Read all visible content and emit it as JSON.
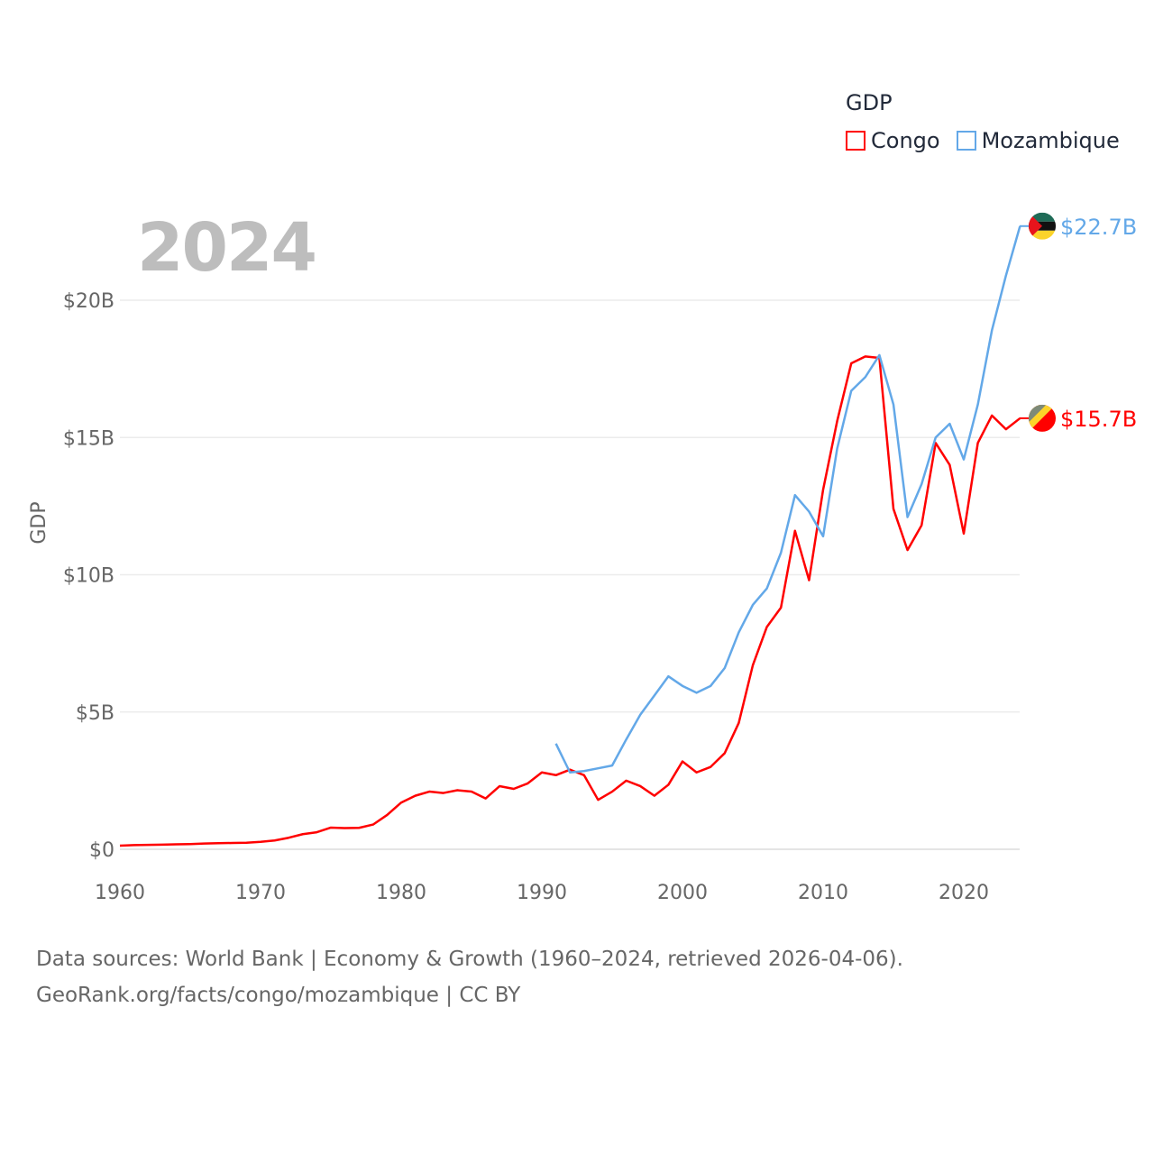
{
  "chart_data": {
    "type": "line",
    "title": "GDP",
    "year_label": "2024",
    "xlabel": "",
    "ylabel": "GDP",
    "xlim": [
      1960,
      2024
    ],
    "ylim": [
      0,
      23
    ],
    "x_ticks": [
      1960,
      1970,
      1980,
      1990,
      2000,
      2010,
      2020
    ],
    "x_tick_labels": [
      "1960",
      "1970",
      "1980",
      "1990",
      "2000",
      "2010",
      "2020"
    ],
    "y_ticks": [
      0,
      5,
      10,
      15,
      20
    ],
    "y_tick_labels": [
      "$0",
      "$5B",
      "$10B",
      "$15B",
      "$20B"
    ],
    "grid": true,
    "legend_position": "top-right",
    "units": "billion USD",
    "series": [
      {
        "name": "Congo",
        "color": "#ff0000",
        "end_label": "$15.7B",
        "start_year": 1960,
        "values": [
          0.13,
          0.15,
          0.16,
          0.17,
          0.18,
          0.19,
          0.21,
          0.22,
          0.23,
          0.24,
          0.27,
          0.32,
          0.42,
          0.55,
          0.62,
          0.79,
          0.77,
          0.78,
          0.9,
          1.25,
          1.7,
          1.95,
          2.1,
          2.05,
          2.15,
          2.1,
          1.85,
          2.3,
          2.2,
          2.4,
          2.8,
          2.7,
          2.9,
          2.7,
          1.8,
          2.1,
          2.5,
          2.3,
          1.95,
          2.35,
          3.2,
          2.8,
          3.0,
          3.5,
          4.6,
          6.7,
          8.1,
          8.8,
          11.6,
          9.8,
          13.1,
          15.6,
          17.7,
          17.95,
          17.9,
          12.4,
          10.9,
          11.8,
          14.8,
          14.0,
          11.5,
          14.8,
          15.8,
          15.3,
          15.7
        ]
      },
      {
        "name": "Mozambique",
        "color": "#63a8e8",
        "end_label": "$22.7B",
        "start_year": 1991,
        "values": [
          3.85,
          2.8,
          2.85,
          2.95,
          3.05,
          4.0,
          4.9,
          5.6,
          6.3,
          5.95,
          5.7,
          5.95,
          6.6,
          7.9,
          8.9,
          9.5,
          10.8,
          12.9,
          12.3,
          11.4,
          14.6,
          16.7,
          17.2,
          18.0,
          16.2,
          12.1,
          13.3,
          15.0,
          15.5,
          14.2,
          16.2,
          18.9,
          20.9,
          22.7
        ]
      }
    ]
  },
  "footer": {
    "line1": "Data sources: World Bank | Economy & Growth (1960–2024, retrieved 2026-04-06).",
    "line2": "GeoRank.org/facts/congo/mozambique | CC BY"
  }
}
